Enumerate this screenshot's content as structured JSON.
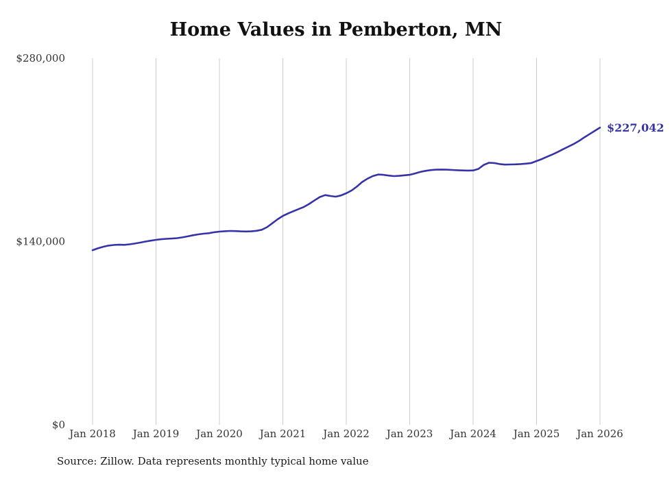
{
  "chart_data": {
    "type": "line",
    "title": "Home Values in Pemberton, MN",
    "source": "Source: Zillow. Data represents monthly typical home value",
    "end_label": "$227,042",
    "line_color": "#3632a8",
    "grid_color": "#cccccc",
    "tick_color": "#333333",
    "ylim": [
      0,
      280000
    ],
    "y_ticks": [
      {
        "label": "$0",
        "value": 0
      },
      {
        "label": "$140,000",
        "value": 140000
      },
      {
        "label": "$280,000",
        "value": 280000
      }
    ],
    "x_ticks": [
      {
        "label": "Jan 2018",
        "index": 0
      },
      {
        "label": "Jan 2019",
        "index": 12
      },
      {
        "label": "Jan 2020",
        "index": 24
      },
      {
        "label": "Jan 2021",
        "index": 36
      },
      {
        "label": "Jan 2022",
        "index": 48
      },
      {
        "label": "Jan 2023",
        "index": 60
      },
      {
        "label": "Jan 2024",
        "index": 72
      },
      {
        "label": "Jan 2025",
        "index": 84
      },
      {
        "label": "Jan 2026",
        "index": 96
      }
    ],
    "values": [
      133400,
      134800,
      136000,
      136900,
      137400,
      137600,
      137500,
      137900,
      138500,
      139200,
      140000,
      140700,
      141300,
      141800,
      142100,
      142300,
      142600,
      143200,
      144000,
      144800,
      145500,
      146000,
      146400,
      147100,
      147600,
      147900,
      148100,
      148000,
      147800,
      147700,
      147800,
      148200,
      149000,
      151000,
      154000,
      157000,
      159600,
      161500,
      163200,
      164800,
      166500,
      168800,
      171500,
      174000,
      175500,
      174800,
      174300,
      175200,
      176900,
      179000,
      182000,
      185500,
      188000,
      190000,
      191200,
      191000,
      190400,
      190000,
      190200,
      190600,
      191000,
      192000,
      193200,
      194000,
      194600,
      194900,
      195000,
      194900,
      194700,
      194500,
      194300,
      194200,
      194300,
      195500,
      198500,
      200200,
      200000,
      199200,
      198800,
      198900,
      199000,
      199200,
      199500,
      200000,
      201500,
      203000,
      204800,
      206500,
      208400,
      210500,
      212500,
      214500,
      216800,
      219500,
      222000,
      224500,
      227042
    ]
  }
}
